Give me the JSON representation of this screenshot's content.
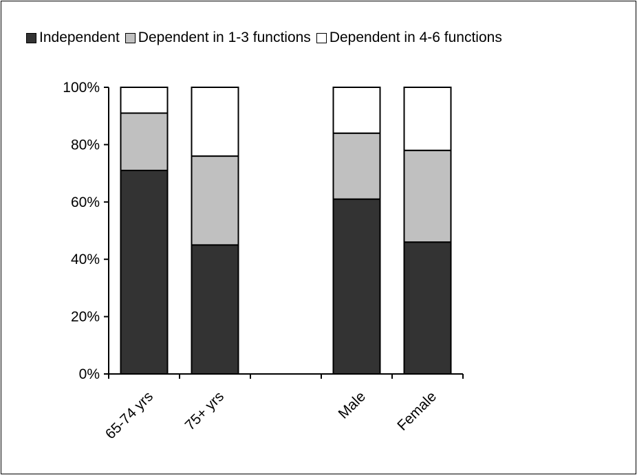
{
  "chart_data": {
    "type": "bar",
    "stacked": true,
    "categories": [
      "65-74 yrs",
      "75+ yrs",
      "",
      "Male",
      "Female"
    ],
    "series": [
      {
        "name": "Independent",
        "color": "#333333",
        "values": [
          71,
          45,
          null,
          61,
          46
        ]
      },
      {
        "name": "Dependent in 1-3 functions",
        "color": "#c0c0c0",
        "values": [
          20,
          31,
          null,
          23,
          32
        ]
      },
      {
        "name": "Dependent in 4-6 functions",
        "color": "#ffffff",
        "values": [
          9,
          24,
          null,
          16,
          22
        ]
      }
    ],
    "ylim": [
      0,
      100
    ],
    "yticks": [
      "0%",
      "20%",
      "40%",
      "60%",
      "80%",
      "100%"
    ],
    "ytick_values": [
      0,
      20,
      40,
      60,
      80,
      100
    ],
    "legend_position": "top",
    "grid": false
  }
}
